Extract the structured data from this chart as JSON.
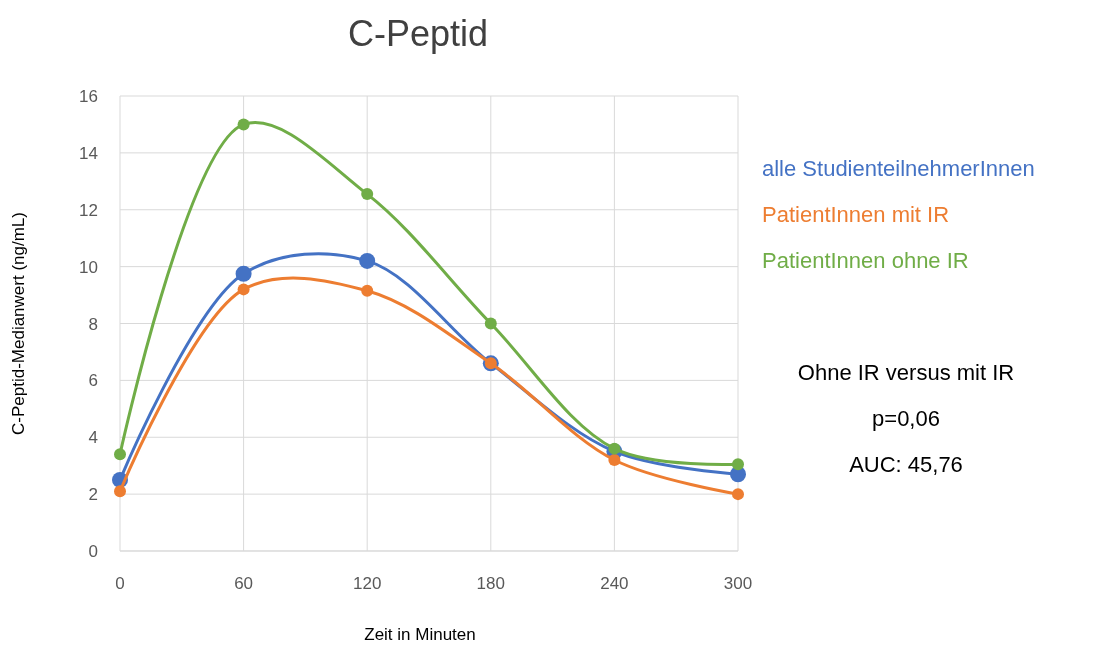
{
  "chart_data": {
    "type": "line",
    "title": "C-Peptid",
    "xlabel": "Zeit in Minuten",
    "ylabel": "C-Peptid-Medianwert (ng/mL)",
    "x": [
      0,
      60,
      120,
      180,
      240,
      300
    ],
    "series": [
      {
        "name": "alle StudienteilnehmerInnen",
        "color": "#4472c4",
        "values": [
          2.5,
          9.75,
          10.2,
          6.6,
          3.5,
          2.7
        ]
      },
      {
        "name": "PatientInnen mit IR",
        "color": "#ed7d31",
        "values": [
          2.1,
          9.2,
          9.15,
          6.6,
          3.2,
          2.0
        ]
      },
      {
        "name": "PatientInnen ohne IR",
        "color": "#70ad47",
        "values": [
          3.4,
          15.0,
          12.55,
          8.0,
          3.6,
          3.05
        ]
      }
    ],
    "xlim": [
      0,
      300
    ],
    "xticks": [
      0,
      60,
      120,
      180,
      240,
      300
    ],
    "ylim": [
      0,
      16
    ],
    "yticks": [
      0,
      2,
      4,
      6,
      8,
      10,
      12,
      14,
      16
    ],
    "grid": true,
    "legend": "right",
    "marker": "circle",
    "line_style": "solid",
    "annotations": [
      "Ohne IR versus mit IR",
      "p=0,06",
      "AUC: 45,76"
    ]
  }
}
